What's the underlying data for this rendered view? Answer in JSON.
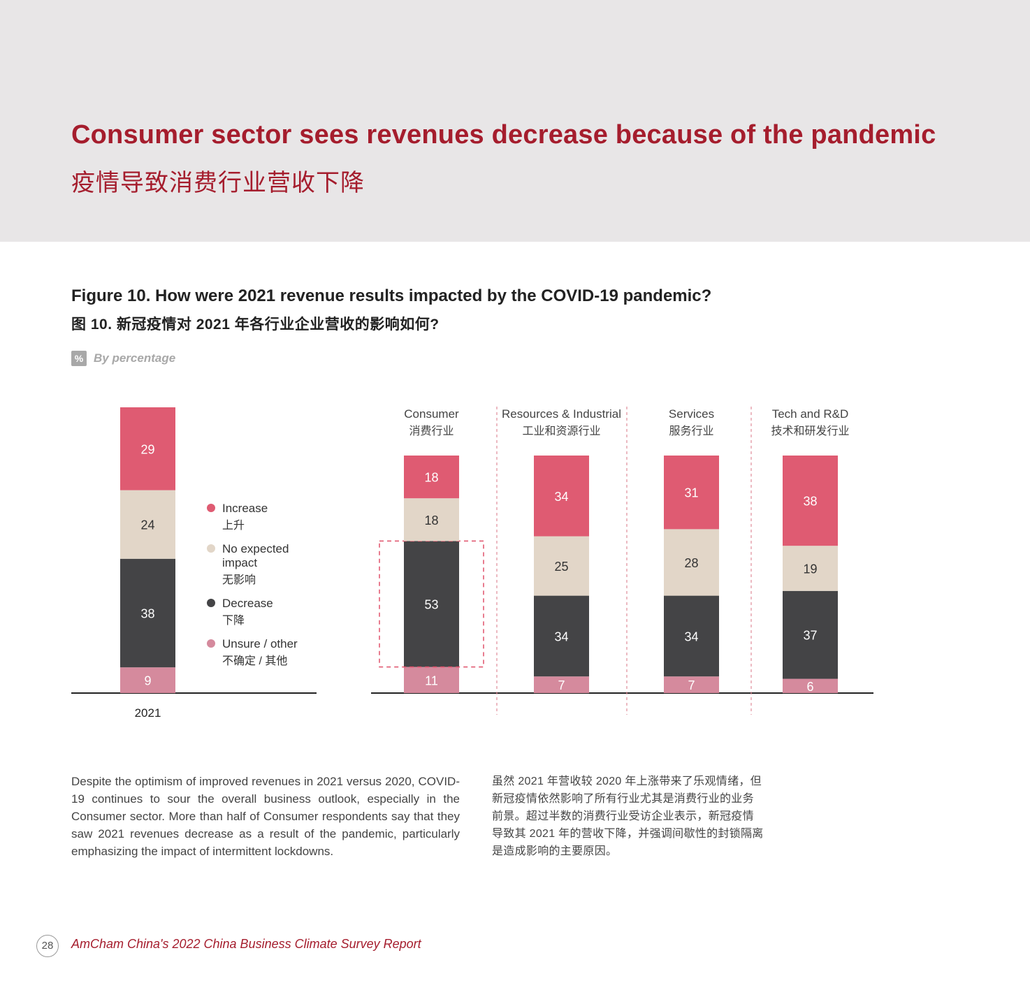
{
  "header": {
    "title": "Consumer sector sees revenues decrease because of the pandemic",
    "title_cn": "疫情导致消费行业营收下降"
  },
  "figure": {
    "title": "Figure 10. How were 2021 revenue results impacted by the COVID-19 pandemic?",
    "title_cn": "图 10. 新冠疫情对 2021 年各行业企业营收的影响如何?",
    "unit_badge": "%",
    "unit_label": "By percentage"
  },
  "chart_data": {
    "type": "bar",
    "stacked": true,
    "overall": {
      "category": "2021",
      "values": {
        "Unsure / other": 9,
        "Decrease": 38,
        "No expected impact": 24,
        "Increase": 29
      }
    },
    "legend": [
      {
        "key": "increase",
        "label": "Increase",
        "label_cn": "上升",
        "color": "#df5b72"
      },
      {
        "key": "no_impact",
        "label": "No expected impact",
        "label_lines": [
          "No expected",
          "impact"
        ],
        "label_cn": "无影响",
        "color": "#e2d6c8"
      },
      {
        "key": "decrease",
        "label": "Decrease",
        "label_cn": "下降",
        "color": "#444446"
      },
      {
        "key": "unsure",
        "label": "Unsure / other",
        "label_cn": "不确定 / 其他",
        "color": "#d58a9d"
      }
    ],
    "categories": [
      "Consumer",
      "Resources & Industrial",
      "Services",
      "Tech and R&D"
    ],
    "categories_cn": [
      "消费行业",
      "工业和资源行业",
      "服务行业",
      "技术和研发行业"
    ],
    "series": [
      {
        "name": "Unsure / other",
        "key": "unsure",
        "values": [
          11,
          7,
          7,
          6
        ]
      },
      {
        "name": "Decrease",
        "key": "decrease",
        "values": [
          53,
          34,
          34,
          37
        ]
      },
      {
        "name": "No expected impact",
        "key": "no_impact",
        "values": [
          18,
          25,
          28,
          19
        ]
      },
      {
        "name": "Increase",
        "key": "increase",
        "values": [
          18,
          34,
          31,
          38
        ]
      }
    ],
    "highlight": {
      "category": "Consumer",
      "series": "Decrease",
      "style": "dashed red box"
    }
  },
  "body": {
    "en": "Despite the optimism of improved revenues in 2021 versus 2020, COVID-19 continues to sour the overall business outlook, especially in the Consumer sector. More than half of Consumer respondents say that they saw 2021 revenues decrease as a result of the pandemic, particularly emphasizing the impact of intermittent lockdowns.",
    "cn": "虽然 2021 年营收较 2020 年上涨带来了乐观情绪，但新冠疫情依然影响了所有行业尤其是消费行业的业务前景。超过半数的消费行业受访企业表示，新冠疫情导致其 2021 年的营收下降，并强调间歇性的封锁隔离是造成影响的主要原因。"
  },
  "footer": {
    "page_number": "28",
    "text": "AmCham China's 2022 China Business Climate Survey Report"
  }
}
